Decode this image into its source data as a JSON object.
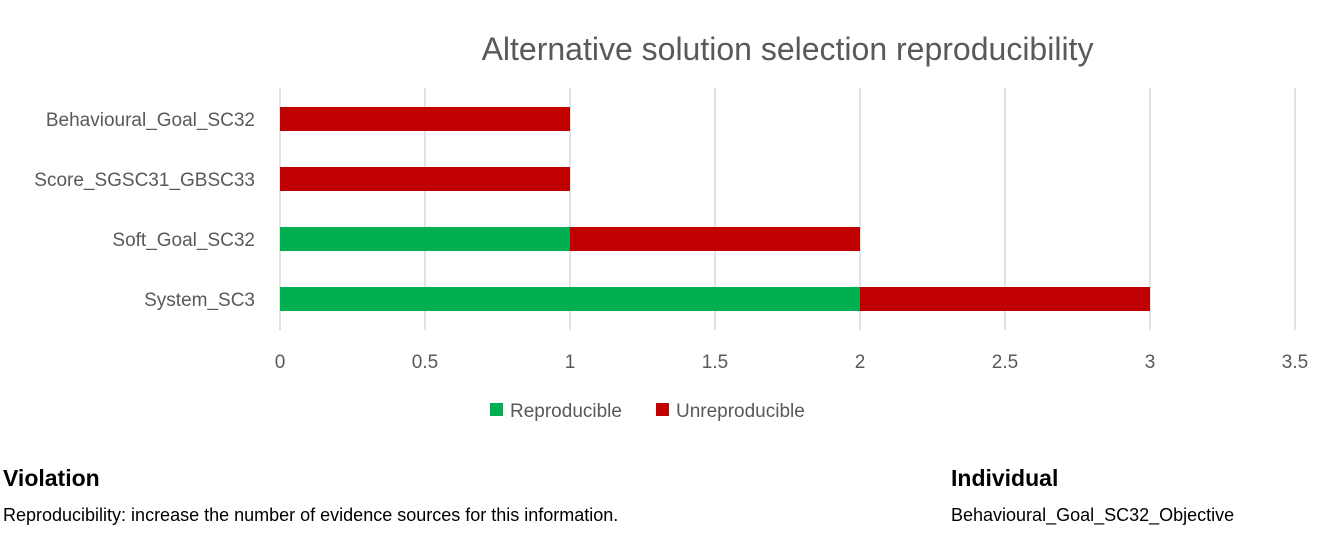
{
  "chart_data": {
    "type": "bar",
    "orientation": "horizontal",
    "stacked": true,
    "title": "Alternative solution selection reproducibility",
    "categories": [
      "Behavioural_Goal_SC32",
      "Score_SGSC31_GBSC33",
      "Soft_Goal_SC32",
      "System_SC3"
    ],
    "series": [
      {
        "name": "Reproducible",
        "color": "#00b050",
        "values": [
          0,
          0,
          1,
          2
        ]
      },
      {
        "name": "Unreproducible",
        "color": "#c00000",
        "values": [
          1,
          1,
          1,
          1
        ]
      }
    ],
    "xlim": [
      0,
      3.5
    ],
    "xticks": [
      "0",
      "0.5",
      "1",
      "1.5",
      "2",
      "2.5",
      "3",
      "3.5"
    ],
    "grid": true,
    "legend_position": "bottom"
  },
  "footer": {
    "violation_heading": "Violation",
    "violation_text": "Reproducibility: increase the number of evidence sources for this information.",
    "individual_heading": "Individual",
    "individual_text": "Behavioural_Goal_SC32_Objective"
  }
}
